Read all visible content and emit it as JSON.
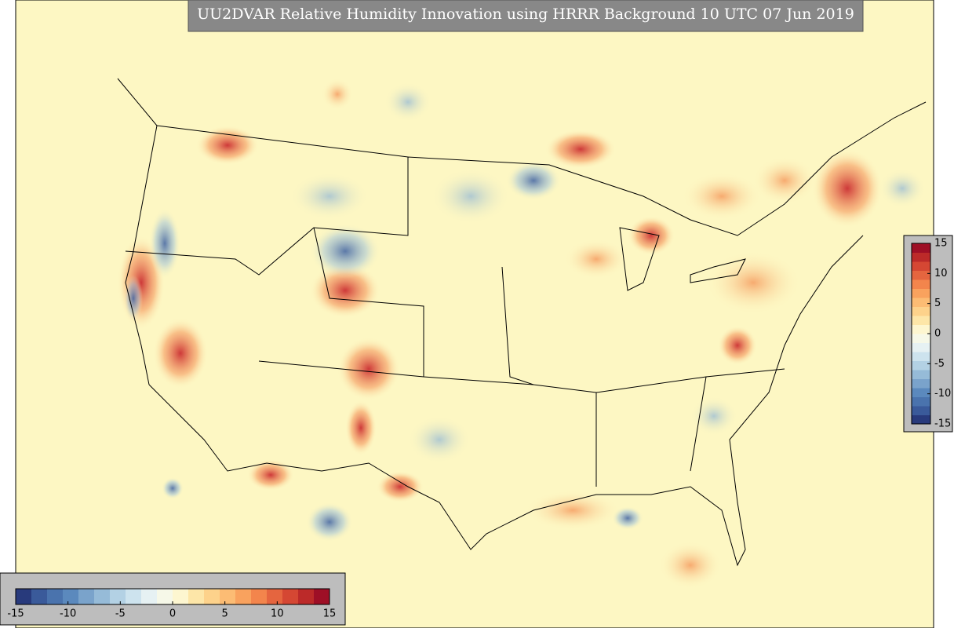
{
  "title": "UU2DVAR Relative Humidity Innovation using HRRR Background 10 UTC 07 Jun 2019",
  "colorbar": {
    "colors": [
      "#283a7c",
      "#3a5a9a",
      "#4a73ad",
      "#5b89bd",
      "#7aa3cb",
      "#96bbd8",
      "#b3d1e4",
      "#cde3ee",
      "#e6f1f3",
      "#f6f8e8",
      "#fdf6d0",
      "#fde6a8",
      "#fdd28b",
      "#fcbc74",
      "#f9a25e",
      "#f3854c",
      "#e5653f",
      "#d54733",
      "#bc2a29",
      "#9e0f26"
    ],
    "ticks": [
      -15,
      -10,
      -5,
      0,
      5,
      10,
      15
    ]
  }
}
